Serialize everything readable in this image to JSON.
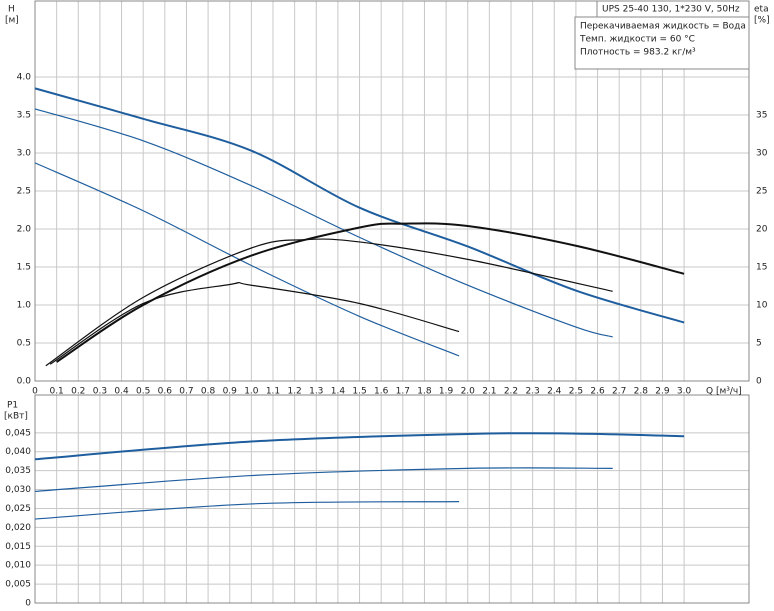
{
  "chart_data": [
    {
      "type": "line",
      "ylabel": "H",
      "yunit": "[м]",
      "y2label": "eta",
      "y2unit": "[%]",
      "xlabel": "Q [м³/ч]",
      "header": "UPS 25-40 130, 1*230 V, 50Hz",
      "annotations": [
        "Перекачиваемая жидкость = Вода",
        "Темп. жидкости = 60 °C",
        "Плотность = 983.2 кг/м³"
      ],
      "grid": true,
      "xlim": [
        0,
        3.3
      ],
      "xticks": [
        0,
        0.1,
        0.2,
        0.3,
        0.4,
        0.5,
        0.6,
        0.7,
        0.8,
        0.9,
        {
          "value": 1,
          "label": "1.0"
        },
        1.1,
        1.2,
        1.3,
        1.4,
        1.5,
        1.6,
        1.7,
        1.8,
        1.9,
        {
          "value": 2,
          "label": "2.0"
        },
        2.1,
        2.2,
        2.3,
        2.4,
        2.5,
        2.6,
        2.7,
        2.8,
        2.9,
        {
          "value": 3,
          "label": "3.0"
        }
      ],
      "ylim": [
        0,
        5
      ],
      "yticks": [
        {
          "value": 0,
          "label": "0.0"
        },
        0.5,
        {
          "value": 1,
          "label": "1.0"
        },
        1.5,
        {
          "value": 2,
          "label": "2.0"
        },
        2.5,
        {
          "value": 3,
          "label": "3.0"
        },
        3.5,
        {
          "value": 4,
          "label": "4.0"
        }
      ],
      "y2lim": [
        0,
        50
      ],
      "y2ticks": [
        0,
        5,
        10,
        15,
        20,
        25,
        30,
        35
      ],
      "series": [
        {
          "color": "#1f5e9e",
          "width": 2,
          "x": [
            0,
            0.5,
            1.0,
            1.5,
            2.0,
            2.5,
            3.0
          ],
          "values": [
            3.85,
            3.45,
            3.03,
            2.28,
            1.77,
            1.19,
            0.77
          ]
        },
        {
          "color": "#1f5e9e",
          "width": 1.2,
          "x": [
            0,
            0.5,
            1.0,
            1.5,
            2.0,
            2.5,
            2.67
          ],
          "values": [
            3.58,
            3.16,
            2.57,
            1.89,
            1.26,
            0.71,
            0.58
          ]
        },
        {
          "color": "#1f5e9e",
          "width": 1.2,
          "x": [
            0,
            0.5,
            1.0,
            1.5,
            1.96
          ],
          "values": [
            2.87,
            2.24,
            1.52,
            0.85,
            0.33
          ]
        },
        {
          "color": "#111111",
          "width": 2,
          "axis": "y2",
          "x": [
            0.1,
            0.5,
            1.0,
            1.5,
            1.7,
            2.0,
            2.5,
            3.0
          ],
          "values": [
            2.5,
            10,
            16.5,
            20.2,
            20.7,
            20.4,
            17.8,
            14.1
          ]
        },
        {
          "color": "#111111",
          "width": 1.2,
          "axis": "y2",
          "x": [
            0.05,
            0.5,
            1.0,
            1.25,
            1.5,
            2.0,
            2.67
          ],
          "values": [
            2,
            11,
            17.5,
            18.6,
            18.3,
            16,
            11.8
          ]
        },
        {
          "color": "#111111",
          "width": 1.2,
          "axis": "y2",
          "x": [
            0.07,
            0.5,
            0.9,
            1.0,
            1.5,
            1.96
          ],
          "values": [
            2.2,
            10.2,
            12.7,
            12.6,
            10.2,
            6.5
          ]
        }
      ]
    },
    {
      "type": "line",
      "ylabel": "P1",
      "yunit": "[кВт]",
      "grid": true,
      "ylim": [
        0,
        0.055
      ],
      "yticks": [
        0,
        {
          "value": 0.005,
          "label": "0,005"
        },
        {
          "value": 0.01,
          "label": "0,010"
        },
        {
          "value": 0.015,
          "label": "0,015"
        },
        {
          "value": 0.02,
          "label": "0,020"
        },
        {
          "value": 0.025,
          "label": "0,025"
        },
        {
          "value": 0.03,
          "label": "0,030"
        },
        {
          "value": 0.035,
          "label": "0,035"
        },
        {
          "value": 0.04,
          "label": "0,040"
        },
        {
          "value": 0.045,
          "label": "0,045"
        }
      ],
      "series": [
        {
          "color": "#1f5e9e",
          "width": 2,
          "x": [
            0,
            1.0,
            2.0,
            2.5,
            3.0
          ],
          "values": [
            0.038,
            0.0427,
            0.0447,
            0.0448,
            0.0441
          ]
        },
        {
          "color": "#1f5e9e",
          "width": 1.2,
          "x": [
            0,
            1.0,
            2.0,
            2.67
          ],
          "values": [
            0.0295,
            0.0337,
            0.0356,
            0.0356
          ]
        },
        {
          "color": "#1f5e9e",
          "width": 1.2,
          "x": [
            0,
            1.0,
            1.96
          ],
          "values": [
            0.0222,
            0.0262,
            0.0268
          ]
        }
      ]
    }
  ]
}
